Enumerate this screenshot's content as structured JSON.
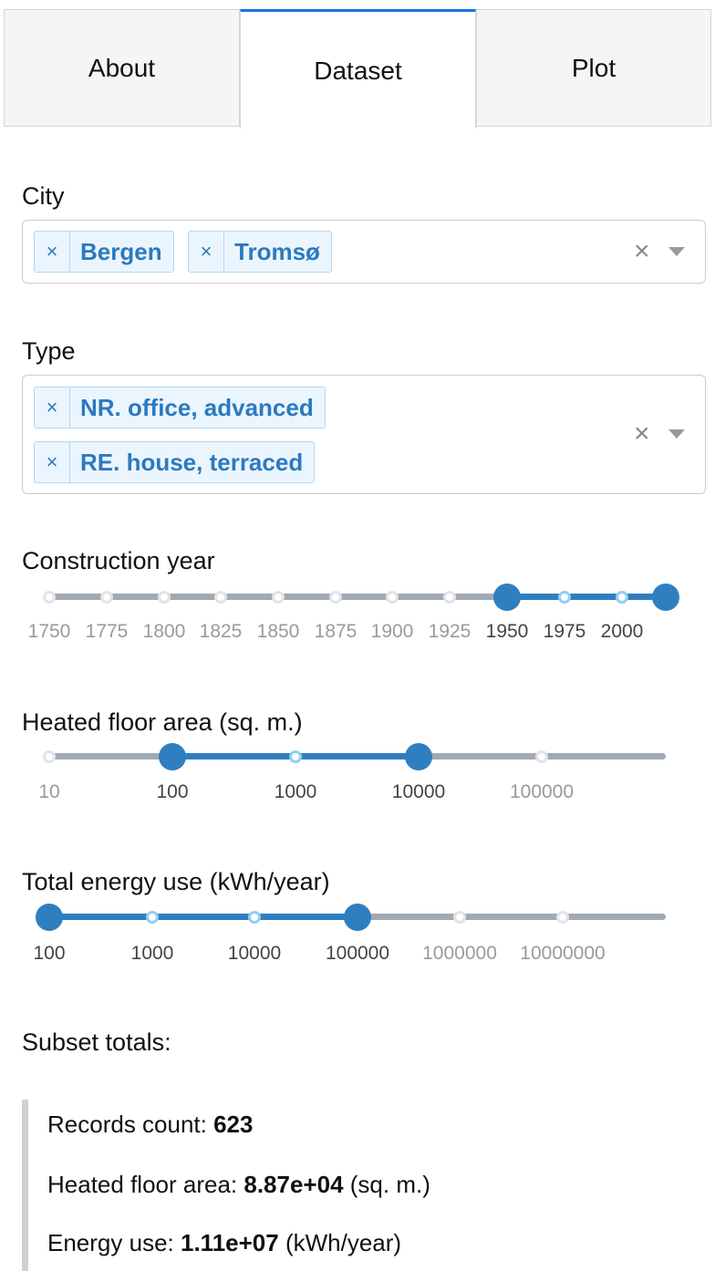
{
  "tabs": [
    {
      "label": "About",
      "active": false
    },
    {
      "label": "Dataset",
      "active": true
    },
    {
      "label": "Plot",
      "active": false
    }
  ],
  "city": {
    "label": "City",
    "selected": [
      "Bergen",
      "Tromsø"
    ],
    "remove_glyph": "×",
    "clear_glyph": "×",
    "icons": {
      "remove": "close-icon",
      "clear": "clear-icon",
      "caret": "chevron-down-icon"
    }
  },
  "type": {
    "label": "Type",
    "selected": [
      "NR. office, advanced",
      "RE. house, terraced"
    ],
    "remove_glyph": "×",
    "clear_glyph": "×"
  },
  "construction_year": {
    "label": "Construction year",
    "marks": [
      "1750",
      "1775",
      "1800",
      "1825",
      "1850",
      "1875",
      "1900",
      "1925",
      "1950",
      "1975",
      "2000"
    ],
    "range": [
      1950,
      2020
    ]
  },
  "heated_floor_area": {
    "label": "Heated floor area (sq. m.)",
    "marks": [
      "10",
      "100",
      "1000",
      "10000",
      "100000"
    ],
    "range": [
      100,
      10000
    ]
  },
  "total_energy": {
    "label": "Total energy use (kWh/year)",
    "marks": [
      "100",
      "1000",
      "10000",
      "100000",
      "1000000",
      "10000000"
    ],
    "range": [
      100,
      100000
    ]
  },
  "totals": {
    "heading": "Subset totals:",
    "records_label": "Records count: ",
    "records_value": "623",
    "area_label": "Heated floor area: ",
    "area_value": "8.87e+04",
    "area_unit": " (sq. m.)",
    "energy_label": "Energy use: ",
    "energy_value": "1.11e+07",
    "energy_unit": " (kWh/year)"
  },
  "colors": {
    "accent": "#2f7fc0",
    "tab_active_border": "#1a73e8",
    "chip_bg": "#ebf5fd",
    "chip_text": "#2a7ac0"
  }
}
